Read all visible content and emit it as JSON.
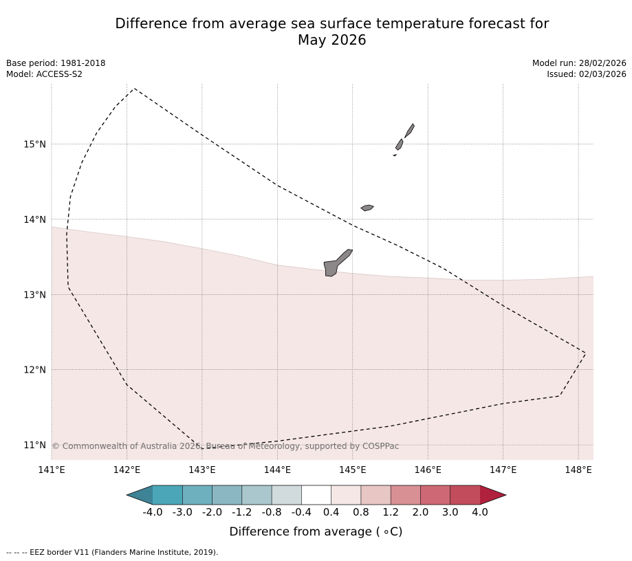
{
  "header": {
    "title_line1": "Difference from average sea surface temperature forecast for",
    "title_line2": "May 2026",
    "base_period": "Base period: 1981-2018",
    "model": "Model: ACCESS-S2",
    "model_run": "Model run: 28/02/2026",
    "issued": "Issued: 02/03/2026"
  },
  "map": {
    "lon_labels": [
      "141°E",
      "142°E",
      "143°E",
      "144°E",
      "145°E",
      "146°E",
      "147°E",
      "148°E"
    ],
    "lat_labels": [
      "15°N",
      "14°N",
      "13°N",
      "12°N",
      "11°N"
    ],
    "lon_range": [
      141.0,
      148.2
    ],
    "lat_range": [
      10.8,
      15.8
    ],
    "anomaly_region_color": "#f5e7e6",
    "land_color": "#8c8789",
    "copyright": "© Commonwealth of Australia 2026, Bureau of Meteorology, supported by COSPPac"
  },
  "colorbar": {
    "labels": [
      "-4.0",
      "-3.0",
      "-2.0",
      "-1.2",
      "-0.8",
      "-0.4",
      "0.4",
      "0.8",
      "1.2",
      "2.0",
      "3.0",
      "4.0"
    ],
    "colors": [
      "#3e8496",
      "#4ba6b7",
      "#6fb0bf",
      "#8bb7c2",
      "#a9c7cc",
      "#d1dbdd",
      "#ffffff",
      "#f5e7e6",
      "#e8c6c4",
      "#d99095",
      "#cd6874",
      "#c24c5c",
      "#b0213e"
    ],
    "title": "Difference from average ( ∘C)"
  },
  "legend": {
    "eez": "--  --  -- EEZ border V11 (Flanders Marine Institute, 2019)."
  }
}
